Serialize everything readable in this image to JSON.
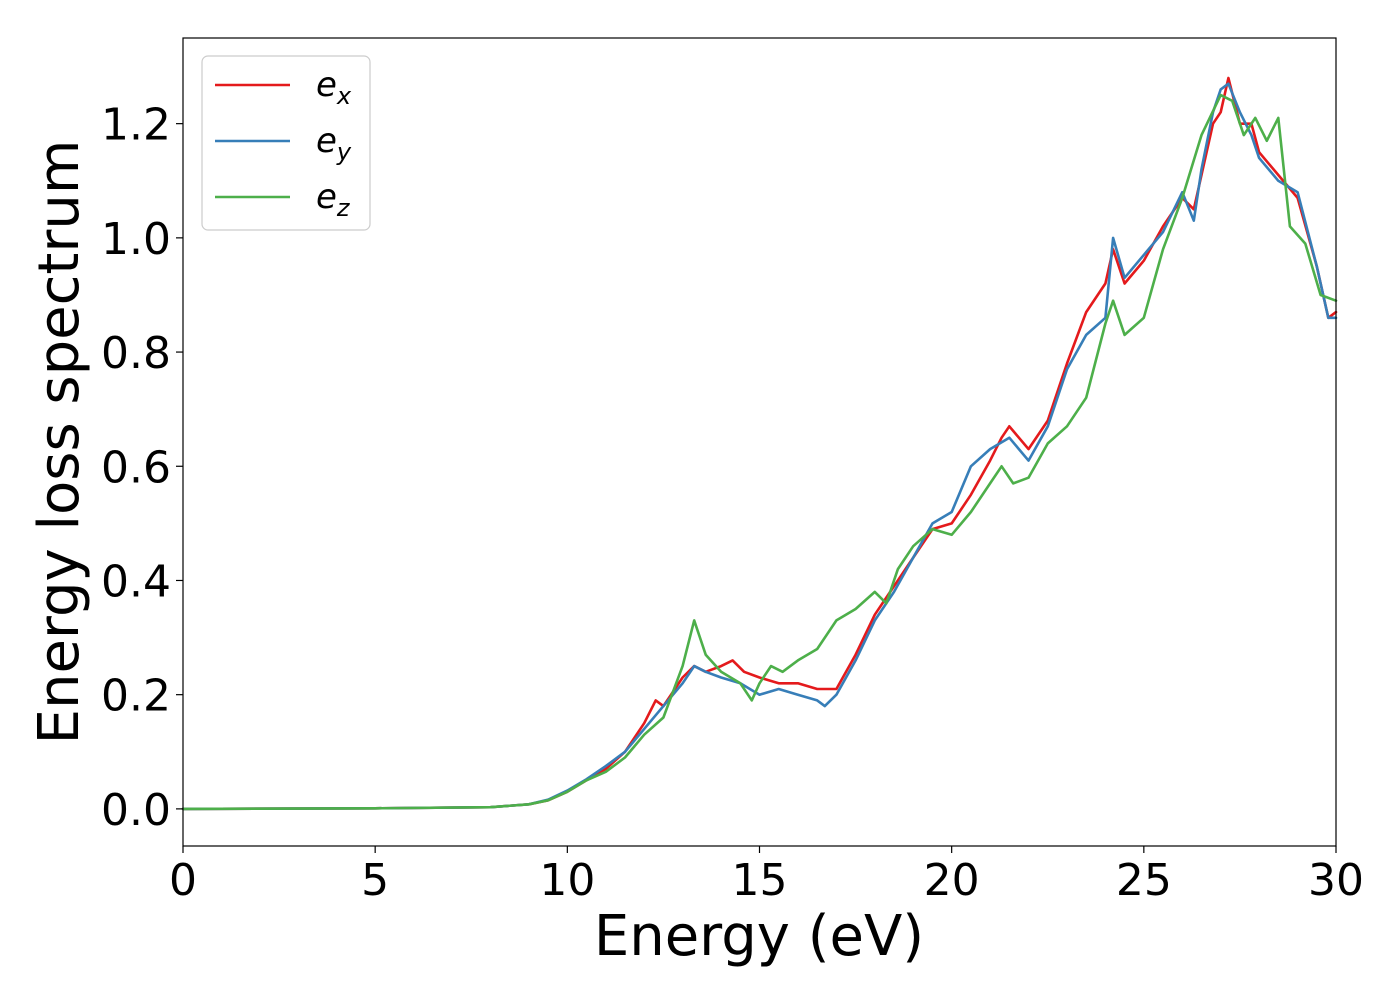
{
  "chart_data": {
    "type": "line",
    "xlabel": "Energy (eV)",
    "ylabel": "Energy loss spectrum",
    "xlim": [
      0,
      30
    ],
    "ylim": [
      -0.065,
      1.35
    ],
    "xticks": [
      0,
      5,
      10,
      15,
      20,
      25,
      30
    ],
    "xtick_labels": [
      "0",
      "5",
      "10",
      "15",
      "20",
      "25",
      "30"
    ],
    "yticks": [
      0.0,
      0.2,
      0.4,
      0.6,
      0.8,
      1.0,
      1.2
    ],
    "ytick_labels": [
      "0.0",
      "0.2",
      "0.4",
      "0.6",
      "0.8",
      "1.0",
      "1.2"
    ],
    "grid": false,
    "legend_position": "top-left",
    "series": [
      {
        "name": "e",
        "subscript": "x",
        "color": "#e41a1c",
        "x": [
          0,
          5,
          8,
          9,
          9.5,
          10,
          10.5,
          11,
          11.5,
          12,
          12.3,
          12.5,
          12.8,
          13,
          13.3,
          13.6,
          14,
          14.3,
          14.6,
          15,
          15.5,
          16,
          16.5,
          17,
          17.5,
          18,
          18.5,
          19,
          19.5,
          20,
          20.5,
          21,
          21.3,
          21.5,
          22,
          22.5,
          22.8,
          23,
          23.5,
          24,
          24.2,
          24.5,
          25,
          25.5,
          26,
          26.3,
          26.5,
          26.8,
          27,
          27.2,
          27.5,
          27.8,
          28,
          28.5,
          29,
          29.5,
          29.8,
          30
        ],
        "y": [
          0.0,
          0.001,
          0.003,
          0.008,
          0.015,
          0.03,
          0.05,
          0.07,
          0.1,
          0.15,
          0.19,
          0.18,
          0.21,
          0.23,
          0.25,
          0.24,
          0.25,
          0.26,
          0.24,
          0.23,
          0.22,
          0.22,
          0.21,
          0.21,
          0.27,
          0.34,
          0.39,
          0.44,
          0.49,
          0.5,
          0.55,
          0.61,
          0.65,
          0.67,
          0.63,
          0.68,
          0.74,
          0.78,
          0.87,
          0.92,
          0.98,
          0.92,
          0.96,
          1.02,
          1.07,
          1.05,
          1.11,
          1.2,
          1.22,
          1.28,
          1.2,
          1.2,
          1.15,
          1.11,
          1.07,
          0.95,
          0.86,
          0.87
        ]
      },
      {
        "name": "e",
        "subscript": "y",
        "color": "#377eb8",
        "x": [
          0,
          5,
          8,
          9,
          9.5,
          10,
          10.5,
          11,
          11.5,
          12,
          12.5,
          13,
          13.3,
          13.6,
          14,
          14.5,
          15,
          15.5,
          16,
          16.5,
          16.7,
          17,
          17.5,
          18,
          18.5,
          19,
          19.5,
          20,
          20.5,
          21,
          21.5,
          22,
          22.5,
          23,
          23.5,
          24,
          24.2,
          24.5,
          25,
          25.5,
          26,
          26.3,
          26.5,
          26.8,
          27,
          27.2,
          27.5,
          27.8,
          28,
          28.5,
          29,
          29.5,
          29.8,
          30
        ],
        "y": [
          0.0,
          0.001,
          0.003,
          0.008,
          0.016,
          0.032,
          0.052,
          0.075,
          0.1,
          0.14,
          0.18,
          0.22,
          0.25,
          0.24,
          0.23,
          0.22,
          0.2,
          0.21,
          0.2,
          0.19,
          0.18,
          0.2,
          0.26,
          0.33,
          0.38,
          0.44,
          0.5,
          0.52,
          0.6,
          0.63,
          0.65,
          0.61,
          0.67,
          0.77,
          0.83,
          0.86,
          1.0,
          0.93,
          0.97,
          1.01,
          1.08,
          1.03,
          1.12,
          1.22,
          1.26,
          1.27,
          1.22,
          1.18,
          1.14,
          1.1,
          1.08,
          0.95,
          0.86,
          0.86
        ]
      },
      {
        "name": "e",
        "subscript": "z",
        "color": "#4daf4a",
        "x": [
          0,
          5,
          8,
          9,
          9.5,
          10,
          10.5,
          11,
          11.5,
          12,
          12.5,
          13,
          13.3,
          13.6,
          14,
          14.5,
          14.8,
          15,
          15.3,
          15.6,
          16,
          16.5,
          17,
          17.5,
          18,
          18.3,
          18.6,
          19,
          19.5,
          20,
          20.5,
          21,
          21.3,
          21.6,
          22,
          22.5,
          23,
          23.5,
          24,
          24.2,
          24.5,
          25,
          25.5,
          26,
          26.5,
          27,
          27.3,
          27.6,
          27.9,
          28.2,
          28.5,
          28.8,
          29.2,
          29.6,
          30
        ],
        "y": [
          0.0,
          0.001,
          0.003,
          0.008,
          0.015,
          0.03,
          0.05,
          0.065,
          0.09,
          0.13,
          0.16,
          0.25,
          0.33,
          0.27,
          0.24,
          0.22,
          0.19,
          0.22,
          0.25,
          0.24,
          0.26,
          0.28,
          0.33,
          0.35,
          0.38,
          0.36,
          0.42,
          0.46,
          0.49,
          0.48,
          0.52,
          0.57,
          0.6,
          0.57,
          0.58,
          0.64,
          0.67,
          0.72,
          0.85,
          0.89,
          0.83,
          0.86,
          0.98,
          1.07,
          1.18,
          1.25,
          1.24,
          1.18,
          1.21,
          1.17,
          1.21,
          1.02,
          0.99,
          0.9,
          0.89
        ]
      }
    ]
  }
}
